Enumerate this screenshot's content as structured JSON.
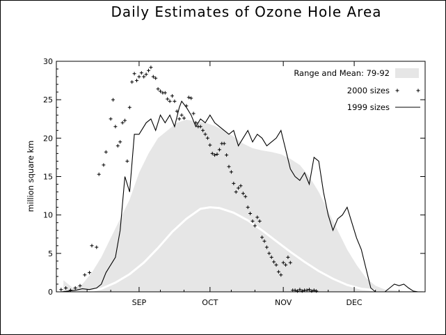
{
  "chart_data": {
    "type": "area",
    "title": "Daily Estimates of Ozone Hole Area",
    "xlabel": "",
    "ylabel": "million square km",
    "ylim": [
      0,
      30
    ],
    "yticks": [
      0,
      5,
      10,
      15,
      20,
      25,
      30
    ],
    "xlim": [
      "Jul 28",
      "Dec 31"
    ],
    "xticks": [
      {
        "label": "SEP",
        "date": "Sep 1"
      },
      {
        "label": "OCT",
        "date": "Oct 1"
      },
      {
        "label": "NOV",
        "date": "Nov 1"
      },
      {
        "label": "DEC",
        "date": "Dec 1"
      }
    ],
    "legend": {
      "placement": "top-right",
      "entries": [
        {
          "label": "Range and Mean: 79-92",
          "style": "band",
          "color": "#e6e6e6"
        },
        {
          "label": "2000 sizes",
          "style": "plus",
          "color": "#000000"
        },
        {
          "label": "1999 sizes",
          "style": "line",
          "color": "#000000"
        }
      ]
    },
    "colors": {
      "range_band": "#e6e6e6",
      "mean_line": "#ffffff",
      "series": "#000000"
    },
    "series": [
      {
        "name": "Range and Mean: 79-92",
        "kind": "band",
        "x": [
          "Jul 31",
          "Aug 4",
          "Aug 8",
          "Aug 12",
          "Aug 16",
          "Aug 20",
          "Aug 24",
          "Aug 28",
          "Sep 1",
          "Sep 5",
          "Sep 9",
          "Sep 13",
          "Sep 17",
          "Sep 21",
          "Sep 25",
          "Sep 29",
          "Oct 3",
          "Oct 7",
          "Oct 11",
          "Oct 15",
          "Oct 19",
          "Oct 23",
          "Oct 27",
          "Oct 31",
          "Nov 4",
          "Nov 8",
          "Nov 12",
          "Nov 16",
          "Nov 20",
          "Nov 24",
          "Nov 28",
          "Dec 2",
          "Dec 6",
          "Dec 10",
          "Dec 14",
          "Dec 18",
          "Dec 22",
          "Dec 26",
          "Dec 30"
        ],
        "upper": [
          1.5,
          0.5,
          1.0,
          2.5,
          4.5,
          7.0,
          9.5,
          12.0,
          15.5,
          18.0,
          20.0,
          21.0,
          22.0,
          22.4,
          22.2,
          22.0,
          21.6,
          21.0,
          20.2,
          19.3,
          18.7,
          18.4,
          18.2,
          17.9,
          17.3,
          16.5,
          15.0,
          13.0,
          10.5,
          8.0,
          5.5,
          3.5,
          1.8,
          0.8,
          0.3,
          0.2,
          0.1,
          0.1,
          0.1
        ],
        "lower": [
          0,
          0,
          0,
          0,
          0,
          0,
          0,
          0,
          0,
          0,
          0,
          0,
          0,
          0,
          0,
          0,
          0,
          0,
          0,
          0,
          0,
          0,
          0,
          0,
          0,
          0,
          0,
          0,
          0,
          0,
          0,
          0,
          0,
          0,
          0,
          0,
          0,
          0,
          0
        ]
      },
      {
        "name": "Mean 79-92",
        "kind": "line",
        "x": [
          "Aug 10",
          "Aug 16",
          "Aug 22",
          "Aug 28",
          "Sep 3",
          "Sep 9",
          "Sep 15",
          "Sep 21",
          "Sep 27",
          "Oct 1",
          "Oct 5",
          "Oct 11",
          "Oct 17",
          "Oct 23",
          "Oct 29",
          "Nov 4",
          "Nov 10",
          "Nov 16",
          "Nov 22",
          "Nov 28",
          "Dec 4",
          "Dec 10"
        ],
        "y": [
          0.0,
          0.4,
          1.2,
          2.3,
          3.8,
          5.7,
          7.8,
          9.5,
          10.8,
          11.0,
          10.9,
          10.3,
          9.3,
          8.0,
          6.6,
          5.2,
          3.9,
          2.7,
          1.7,
          0.9,
          0.4,
          0.2
        ]
      },
      {
        "name": "1999 sizes",
        "kind": "line",
        "x": [
          "Jul 30",
          "Aug 2",
          "Aug 5",
          "Aug 8",
          "Aug 11",
          "Aug 14",
          "Aug 16",
          "Aug 18",
          "Aug 20",
          "Aug 22",
          "Aug 24",
          "Aug 26",
          "Aug 28",
          "Aug 30",
          "Sep 1",
          "Sep 2",
          "Sep 4",
          "Sep 6",
          "Sep 8",
          "Sep 10",
          "Sep 12",
          "Sep 14",
          "Sep 16",
          "Sep 18",
          "Sep 19",
          "Sep 21",
          "Sep 23",
          "Sep 25",
          "Sep 27",
          "Sep 29",
          "Oct 1",
          "Oct 3",
          "Oct 5",
          "Oct 7",
          "Oct 9",
          "Oct 11",
          "Oct 13",
          "Oct 15",
          "Oct 17",
          "Oct 19",
          "Oct 21",
          "Oct 23",
          "Oct 25",
          "Oct 27",
          "Oct 29",
          "Oct 31",
          "Nov 2",
          "Nov 4",
          "Nov 6",
          "Nov 8",
          "Nov 10",
          "Nov 12",
          "Nov 14",
          "Nov 16",
          "Nov 18",
          "Nov 20",
          "Nov 22",
          "Nov 24",
          "Nov 26",
          "Nov 28",
          "Nov 30",
          "Dec 2",
          "Dec 4",
          "Dec 6",
          "Dec 8",
          "Dec 10",
          "Dec 12",
          "Dec 14",
          "Dec 16",
          "Dec 18",
          "Dec 20",
          "Dec 22",
          "Dec 24",
          "Dec 26",
          "Dec 28"
        ],
        "y": [
          0,
          0.1,
          0.2,
          0.4,
          0.3,
          0.5,
          1.0,
          2.5,
          3.5,
          4.5,
          8.0,
          15.0,
          13.0,
          20.5,
          20.5,
          21.0,
          22.0,
          22.5,
          21.0,
          23.0,
          22.0,
          23.0,
          21.5,
          24.0,
          24.8,
          24.0,
          23.0,
          21.5,
          22.5,
          22.0,
          23.0,
          22.0,
          21.5,
          21.0,
          20.5,
          21.0,
          19.0,
          20.0,
          21.0,
          19.5,
          20.5,
          20.0,
          19.0,
          19.5,
          20.0,
          21.0,
          18.5,
          16.0,
          15.0,
          14.5,
          15.5,
          14.0,
          17.5,
          17.0,
          13.0,
          10.0,
          8.0,
          9.5,
          10.0,
          11.0,
          9.0,
          7.0,
          5.5,
          3.0,
          0.5,
          0,
          0,
          0,
          0.5,
          1.0,
          0.8,
          1.0,
          0.5,
          0.1,
          0
        ]
      },
      {
        "name": "2000 sizes",
        "kind": "scatter",
        "x": [
          "Jul 30",
          "Aug 1",
          "Aug 3",
          "Aug 5",
          "Aug 7",
          "Aug 9",
          "Aug 11",
          "Aug 12",
          "Aug 14",
          "Aug 15",
          "Aug 17",
          "Aug 18",
          "Aug 20",
          "Aug 21",
          "Aug 22",
          "Aug 23",
          "Aug 24",
          "Aug 25",
          "Aug 26",
          "Aug 27",
          "Aug 28",
          "Aug 29",
          "Aug 30",
          "Aug 31",
          "Sep 1",
          "Sep 2",
          "Sep 3",
          "Sep 4",
          "Sep 5",
          "Sep 6",
          "Sep 7",
          "Sep 8",
          "Sep 9",
          "Sep 10",
          "Sep 11",
          "Sep 12",
          "Sep 13",
          "Sep 14",
          "Sep 15",
          "Sep 16",
          "Sep 17",
          "Sep 18",
          "Sep 19",
          "Sep 20",
          "Sep 21",
          "Sep 22",
          "Sep 23",
          "Sep 24",
          "Sep 25",
          "Sep 26",
          "Sep 27",
          "Sep 28",
          "Sep 29",
          "Sep 30",
          "Oct 1",
          "Oct 2",
          "Oct 3",
          "Oct 4",
          "Oct 5",
          "Oct 6",
          "Oct 7",
          "Oct 8",
          "Oct 9",
          "Oct 10",
          "Oct 11",
          "Oct 12",
          "Oct 13",
          "Oct 14",
          "Oct 15",
          "Oct 16",
          "Oct 17",
          "Oct 18",
          "Oct 19",
          "Oct 20",
          "Oct 21",
          "Oct 22",
          "Oct 23",
          "Oct 24",
          "Oct 25",
          "Oct 26",
          "Oct 27",
          "Oct 28",
          "Oct 29",
          "Oct 30",
          "Oct 31",
          "Nov 1",
          "Nov 2",
          "Nov 3",
          "Nov 4",
          "Nov 5",
          "Nov 6",
          "Nov 7",
          "Nov 8",
          "Nov 9",
          "Nov 10",
          "Nov 11",
          "Nov 12",
          "Nov 13",
          "Nov 14",
          "Nov 15"
        ],
        "y": [
          0.3,
          0.5,
          0.2,
          0.5,
          0.8,
          2.2,
          2.5,
          6.0,
          5.8,
          15.3,
          16.5,
          18.2,
          22.5,
          25.0,
          21.5,
          19.0,
          19.5,
          22.0,
          22.3,
          17.0,
          24.0,
          27.3,
          28.4,
          27.5,
          28.0,
          28.5,
          28.0,
          28.3,
          28.8,
          29.2,
          28.0,
          27.8,
          26.4,
          26.1,
          25.9,
          25.9,
          25.1,
          24.8,
          25.5,
          24.8,
          23.5,
          22.5,
          23.0,
          22.6,
          24.2,
          25.3,
          25.2,
          23.2,
          22.0,
          21.5,
          21.5,
          21.0,
          20.5,
          20.0,
          19.1,
          18.0,
          17.8,
          17.9,
          18.5,
          19.3,
          19.3,
          17.8,
          16.3,
          15.6,
          14.1,
          13.0,
          13.5,
          13.8,
          12.8,
          12.4,
          11.0,
          10.2,
          9.2,
          8.6,
          9.7,
          9.2,
          7.1,
          6.6,
          5.8,
          5.0,
          4.5,
          3.9,
          3.5,
          2.6,
          2.2,
          3.8,
          3.5,
          4.5,
          3.8,
          0.2,
          0.2,
          0.1,
          0.3,
          0.1,
          0.2,
          0.2,
          0.3,
          0.1,
          0.2,
          0.1
        ]
      }
    ]
  }
}
